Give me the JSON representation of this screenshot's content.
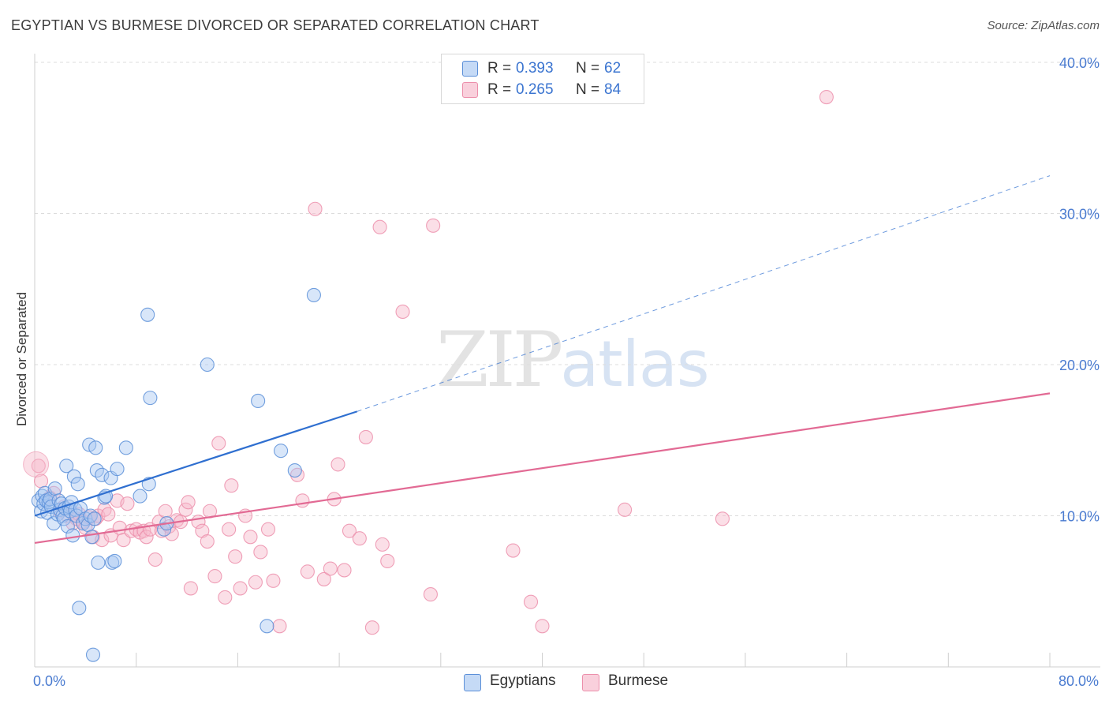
{
  "header": {
    "title": "EGYPTIAN VS BURMESE DIVORCED OR SEPARATED CORRELATION CHART",
    "source": "Source: ZipAtlas.com"
  },
  "watermark": {
    "zip": "ZIP",
    "atlas": "atlas"
  },
  "legend": {
    "rows": [
      {
        "r_label": "R =",
        "r_value": "0.393",
        "n_label": "N =",
        "n_value": "62",
        "color": "#a9c8f2"
      },
      {
        "r_label": "R =",
        "r_value": "0.265",
        "n_label": "N =",
        "n_value": "84",
        "color": "#f6b7ca"
      }
    ]
  },
  "bottom_legend": [
    {
      "label": "Egyptians",
      "color": "#a9c8f2"
    },
    {
      "label": "Burmese",
      "color": "#f6b7ca"
    }
  ],
  "colors": {
    "egyptian_stroke": "#5b8fd8",
    "egyptian_fill": "#a9c8f2",
    "egyptian_line": "#2f6fd0",
    "burmese_stroke": "#ec8fab",
    "burmese_fill": "#f6b7ca",
    "burmese_line": "#e26a94",
    "grid": "#dcdcdc",
    "tick_label": "#4a7bd0"
  },
  "chart_data": {
    "type": "scatter",
    "title": "EGYPTIAN VS BURMESE DIVORCED OR SEPARATED CORRELATION CHART",
    "xlabel": "",
    "ylabel": "Divorced or Separated",
    "xlim": [
      0,
      80
    ],
    "ylim": [
      0,
      40
    ],
    "x_tick_labels": [
      "0.0%",
      "80.0%"
    ],
    "y_ticks": [
      10,
      20,
      30,
      40
    ],
    "y_tick_labels": [
      "10.0%",
      "20.0%",
      "30.0%",
      "40.0%"
    ],
    "grid": true,
    "legend_position": "top-center",
    "series": [
      {
        "name": "Egyptians",
        "R": 0.393,
        "N": 62,
        "trend": {
          "x0": 0,
          "y0": 10.0,
          "x1": 25.4,
          "y1": 16.9,
          "dashed_to_x": 80,
          "dashed_to_y": 32.5
        },
        "points": [
          [
            0.3,
            11.0
          ],
          [
            0.5,
            10.3
          ],
          [
            0.6,
            11.3
          ],
          [
            0.7,
            10.8
          ],
          [
            0.8,
            11.5
          ],
          [
            0.9,
            11.0
          ],
          [
            1.0,
            10.2
          ],
          [
            1.1,
            10.9
          ],
          [
            1.2,
            11.1
          ],
          [
            1.3,
            10.6
          ],
          [
            1.5,
            9.5
          ],
          [
            1.6,
            11.8
          ],
          [
            1.8,
            10.1
          ],
          [
            1.9,
            11.0
          ],
          [
            2.0,
            10.4
          ],
          [
            2.1,
            10.8
          ],
          [
            2.2,
            10.0
          ],
          [
            2.3,
            9.8
          ],
          [
            2.4,
            10.5
          ],
          [
            2.5,
            13.3
          ],
          [
            2.6,
            9.3
          ],
          [
            2.7,
            10.6
          ],
          [
            2.8,
            10.3
          ],
          [
            2.9,
            10.9
          ],
          [
            3.0,
            8.7
          ],
          [
            3.1,
            12.6
          ],
          [
            3.2,
            10.4
          ],
          [
            3.3,
            10.0
          ],
          [
            3.4,
            12.1
          ],
          [
            3.5,
            3.9
          ],
          [
            3.6,
            10.5
          ],
          [
            3.8,
            9.5
          ],
          [
            4.0,
            9.8
          ],
          [
            4.2,
            9.4
          ],
          [
            4.3,
            14.7
          ],
          [
            4.4,
            10.0
          ],
          [
            4.5,
            8.6
          ],
          [
            4.6,
            0.8
          ],
          [
            4.7,
            9.8
          ],
          [
            4.8,
            14.5
          ],
          [
            4.9,
            13.0
          ],
          [
            5.0,
            6.9
          ],
          [
            5.3,
            12.7
          ],
          [
            5.5,
            11.2
          ],
          [
            5.6,
            11.3
          ],
          [
            6.0,
            12.5
          ],
          [
            6.1,
            6.9
          ],
          [
            6.3,
            7.0
          ],
          [
            6.5,
            13.1
          ],
          [
            7.2,
            14.5
          ],
          [
            8.3,
            11.3
          ],
          [
            8.9,
            23.3
          ],
          [
            9.0,
            12.1
          ],
          [
            9.1,
            17.8
          ],
          [
            10.2,
            9.1
          ],
          [
            10.4,
            9.5
          ],
          [
            13.6,
            20.0
          ],
          [
            17.6,
            17.6
          ],
          [
            18.3,
            2.7
          ],
          [
            19.4,
            14.3
          ],
          [
            20.5,
            13.0
          ],
          [
            22.0,
            24.6
          ]
        ]
      },
      {
        "name": "Burmese",
        "R": 0.265,
        "N": 84,
        "trend": {
          "x0": 0,
          "y0": 8.2,
          "x1": 80,
          "y1": 18.1
        },
        "points": [
          [
            0.3,
            13.3
          ],
          [
            0.5,
            12.3
          ],
          [
            1.2,
            11.2
          ],
          [
            1.5,
            11.5
          ],
          [
            2.0,
            10.3
          ],
          [
            2.3,
            10.6
          ],
          [
            2.6,
            10.0
          ],
          [
            3.0,
            9.5
          ],
          [
            3.3,
            9.8
          ],
          [
            3.5,
            10.1
          ],
          [
            3.8,
            9.6
          ],
          [
            4.0,
            9.2
          ],
          [
            4.3,
            9.9
          ],
          [
            4.6,
            8.6
          ],
          [
            4.8,
            9.8
          ],
          [
            5.0,
            10.0
          ],
          [
            5.3,
            8.4
          ],
          [
            5.5,
            10.4
          ],
          [
            5.8,
            10.1
          ],
          [
            6.0,
            8.7
          ],
          [
            6.5,
            11.0
          ],
          [
            6.7,
            9.2
          ],
          [
            7.0,
            8.4
          ],
          [
            7.3,
            10.8
          ],
          [
            7.6,
            9.0
          ],
          [
            8.0,
            9.1
          ],
          [
            8.3,
            8.9
          ],
          [
            8.6,
            9.0
          ],
          [
            8.8,
            8.6
          ],
          [
            9.1,
            9.1
          ],
          [
            9.5,
            7.1
          ],
          [
            9.8,
            9.6
          ],
          [
            10.0,
            9.0
          ],
          [
            10.3,
            10.3
          ],
          [
            10.6,
            9.3
          ],
          [
            10.8,
            8.8
          ],
          [
            11.2,
            9.7
          ],
          [
            11.5,
            9.6
          ],
          [
            11.9,
            10.4
          ],
          [
            12.1,
            10.9
          ],
          [
            12.3,
            5.2
          ],
          [
            12.9,
            9.6
          ],
          [
            13.2,
            9.0
          ],
          [
            13.6,
            8.3
          ],
          [
            13.8,
            10.3
          ],
          [
            14.2,
            6.0
          ],
          [
            14.5,
            14.8
          ],
          [
            15.0,
            4.6
          ],
          [
            15.3,
            9.1
          ],
          [
            15.5,
            12.0
          ],
          [
            15.8,
            7.3
          ],
          [
            16.2,
            5.2
          ],
          [
            16.6,
            10.0
          ],
          [
            17.0,
            8.6
          ],
          [
            17.4,
            5.6
          ],
          [
            17.8,
            7.6
          ],
          [
            18.4,
            9.1
          ],
          [
            18.8,
            5.7
          ],
          [
            19.3,
            2.7
          ],
          [
            20.7,
            12.7
          ],
          [
            21.1,
            11.0
          ],
          [
            21.5,
            6.3
          ],
          [
            22.1,
            30.3
          ],
          [
            22.8,
            5.8
          ],
          [
            23.3,
            6.5
          ],
          [
            23.6,
            11.1
          ],
          [
            23.9,
            13.4
          ],
          [
            24.4,
            6.4
          ],
          [
            24.8,
            9.0
          ],
          [
            25.6,
            8.5
          ],
          [
            26.1,
            15.2
          ],
          [
            26.6,
            2.6
          ],
          [
            27.2,
            29.1
          ],
          [
            27.4,
            8.1
          ],
          [
            27.8,
            7.0
          ],
          [
            29.0,
            23.5
          ],
          [
            31.2,
            4.8
          ],
          [
            31.4,
            29.2
          ],
          [
            37.7,
            7.7
          ],
          [
            39.1,
            4.3
          ],
          [
            40.0,
            2.7
          ],
          [
            46.5,
            10.4
          ],
          [
            54.2,
            9.8
          ],
          [
            62.4,
            37.7
          ]
        ]
      }
    ]
  }
}
